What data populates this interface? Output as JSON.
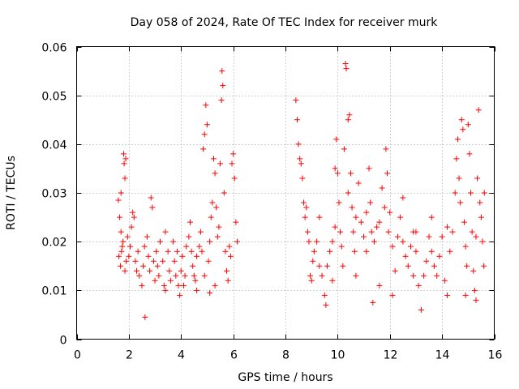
{
  "chart_data": {
    "type": "scatter",
    "title": "Day 058 of 2024, Rate Of TEC Index for receiver murk",
    "xlabel": "GPS time / hours",
    "ylabel": "ROTI / TECUs",
    "xlim": [
      0,
      16
    ],
    "ylim": [
      0,
      0.06
    ],
    "xticks": [
      0,
      2,
      4,
      6,
      8,
      10,
      12,
      14,
      16
    ],
    "yticks": [
      0,
      0.01,
      0.02,
      0.03,
      0.04,
      0.05,
      0.06
    ],
    "xtick_labels": [
      "0",
      "2",
      "4",
      "6",
      "8",
      "10",
      "12",
      "14",
      "16"
    ],
    "ytick_labels": [
      "0",
      "0.01",
      "0.02",
      "0.03",
      "0.04",
      "0.05",
      "0.06"
    ],
    "grid": true,
    "marker": "plus",
    "marker_color": "#ff0000",
    "series": [
      {
        "name": "ROTI",
        "points": [
          [
            1.6,
            0.0285
          ],
          [
            1.65,
            0.025
          ],
          [
            1.7,
            0.03
          ],
          [
            1.7,
            0.022
          ],
          [
            1.75,
            0.019
          ],
          [
            1.8,
            0.038
          ],
          [
            1.82,
            0.036
          ],
          [
            1.85,
            0.033
          ],
          [
            1.88,
            0.037
          ],
          [
            1.9,
            0.016
          ],
          [
            1.62,
            0.017
          ],
          [
            1.68,
            0.015
          ],
          [
            1.72,
            0.018
          ],
          [
            1.78,
            0.02
          ],
          [
            1.85,
            0.014
          ],
          [
            1.95,
            0.021
          ],
          [
            2.0,
            0.017
          ],
          [
            2.05,
            0.019
          ],
          [
            2.1,
            0.023
          ],
          [
            2.15,
            0.026
          ],
          [
            2.2,
            0.025
          ],
          [
            2.25,
            0.016
          ],
          [
            2.3,
            0.014
          ],
          [
            2.35,
            0.018
          ],
          [
            2.4,
            0.013
          ],
          [
            2.5,
            0.011
          ],
          [
            2.55,
            0.015
          ],
          [
            2.6,
            0.019
          ],
          [
            2.62,
            0.0045
          ],
          [
            2.7,
            0.021
          ],
          [
            2.75,
            0.017
          ],
          [
            2.8,
            0.014
          ],
          [
            2.85,
            0.029
          ],
          [
            2.9,
            0.027
          ],
          [
            2.95,
            0.016
          ],
          [
            3.0,
            0.012
          ],
          [
            3.05,
            0.018
          ],
          [
            3.1,
            0.015
          ],
          [
            3.15,
            0.013
          ],
          [
            3.2,
            0.02
          ],
          [
            3.3,
            0.016
          ],
          [
            3.35,
            0.011
          ],
          [
            3.4,
            0.022
          ],
          [
            3.5,
            0.018
          ],
          [
            3.55,
            0.014
          ],
          [
            3.6,
            0.012
          ],
          [
            3.7,
            0.02
          ],
          [
            3.75,
            0.016
          ],
          [
            3.8,
            0.013
          ],
          [
            3.85,
            0.018
          ],
          [
            3.9,
            0.011
          ],
          [
            3.95,
            0.009
          ],
          [
            4.0,
            0.014
          ],
          [
            4.05,
            0.017
          ],
          [
            4.1,
            0.011
          ],
          [
            4.15,
            0.013
          ],
          [
            4.2,
            0.019
          ],
          [
            4.3,
            0.021
          ],
          [
            4.35,
            0.024
          ],
          [
            4.4,
            0.018
          ],
          [
            4.45,
            0.015
          ],
          [
            4.5,
            0.013
          ],
          [
            4.55,
            0.012
          ],
          [
            4.6,
            0.017
          ],
          [
            4.7,
            0.019
          ],
          [
            4.75,
            0.022
          ],
          [
            4.8,
            0.018
          ],
          [
            4.85,
            0.039
          ],
          [
            4.9,
            0.042
          ],
          [
            4.95,
            0.048
          ],
          [
            5.0,
            0.044
          ],
          [
            5.05,
            0.016
          ],
          [
            5.1,
            0.02
          ],
          [
            5.15,
            0.025
          ],
          [
            5.2,
            0.028
          ],
          [
            5.25,
            0.037
          ],
          [
            5.3,
            0.034
          ],
          [
            5.35,
            0.027
          ],
          [
            5.4,
            0.021
          ],
          [
            5.45,
            0.023
          ],
          [
            5.5,
            0.036
          ],
          [
            5.55,
            0.049
          ],
          [
            5.57,
            0.055
          ],
          [
            5.6,
            0.052
          ],
          [
            5.65,
            0.03
          ],
          [
            5.7,
            0.018
          ],
          [
            5.75,
            0.014
          ],
          [
            5.8,
            0.012
          ],
          [
            5.85,
            0.019
          ],
          [
            5.9,
            0.017
          ],
          [
            5.95,
            0.036
          ],
          [
            6.0,
            0.038
          ],
          [
            6.05,
            0.033
          ],
          [
            6.1,
            0.024
          ],
          [
            6.15,
            0.02
          ],
          [
            5.3,
            0.011
          ],
          [
            5.1,
            0.0095
          ],
          [
            4.9,
            0.013
          ],
          [
            4.6,
            0.01
          ],
          [
            3.4,
            0.01
          ],
          [
            8.4,
            0.049
          ],
          [
            8.45,
            0.045
          ],
          [
            8.5,
            0.04
          ],
          [
            8.55,
            0.037
          ],
          [
            8.6,
            0.036
          ],
          [
            8.65,
            0.033
          ],
          [
            8.7,
            0.028
          ],
          [
            8.75,
            0.025
          ],
          [
            8.8,
            0.027
          ],
          [
            8.85,
            0.022
          ],
          [
            8.9,
            0.02
          ],
          [
            8.95,
            0.013
          ],
          [
            9.0,
            0.012
          ],
          [
            9.05,
            0.016
          ],
          [
            9.1,
            0.018
          ],
          [
            9.2,
            0.02
          ],
          [
            9.3,
            0.015
          ],
          [
            9.4,
            0.013
          ],
          [
            9.5,
            0.009
          ],
          [
            9.55,
            0.007
          ],
          [
            9.6,
            0.015
          ],
          [
            9.7,
            0.018
          ],
          [
            9.8,
            0.02
          ],
          [
            9.9,
            0.023
          ],
          [
            9.95,
            0.041
          ],
          [
            10.0,
            0.034
          ],
          [
            10.05,
            0.028
          ],
          [
            10.1,
            0.022
          ],
          [
            10.15,
            0.019
          ],
          [
            10.2,
            0.015
          ],
          [
            10.25,
            0.039
          ],
          [
            10.3,
            0.0565
          ],
          [
            10.33,
            0.0555
          ],
          [
            10.4,
            0.045
          ],
          [
            10.45,
            0.046
          ],
          [
            10.5,
            0.034
          ],
          [
            10.55,
            0.027
          ],
          [
            10.6,
            0.022
          ],
          [
            10.65,
            0.018
          ],
          [
            10.7,
            0.025
          ],
          [
            10.8,
            0.032
          ],
          [
            10.9,
            0.024
          ],
          [
            11.0,
            0.021
          ],
          [
            11.1,
            0.018
          ],
          [
            11.2,
            0.035
          ],
          [
            11.25,
            0.028
          ],
          [
            11.3,
            0.022
          ],
          [
            11.35,
            0.0075
          ],
          [
            11.4,
            0.02
          ],
          [
            11.5,
            0.023
          ],
          [
            11.6,
            0.024
          ],
          [
            11.7,
            0.031
          ],
          [
            11.8,
            0.027
          ],
          [
            11.85,
            0.039
          ],
          [
            11.9,
            0.034
          ],
          [
            11.95,
            0.022
          ],
          [
            12.0,
            0.026
          ],
          [
            12.1,
            0.019
          ],
          [
            12.2,
            0.014
          ],
          [
            12.3,
            0.021
          ],
          [
            12.4,
            0.025
          ],
          [
            12.5,
            0.02
          ],
          [
            12.6,
            0.017
          ],
          [
            12.7,
            0.015
          ],
          [
            12.8,
            0.019
          ],
          [
            12.9,
            0.022
          ],
          [
            13.0,
            0.018
          ],
          [
            13.1,
            0.011
          ],
          [
            13.2,
            0.006
          ],
          [
            13.3,
            0.013
          ],
          [
            13.4,
            0.016
          ],
          [
            13.5,
            0.021
          ],
          [
            13.6,
            0.018
          ],
          [
            13.7,
            0.015
          ],
          [
            13.8,
            0.013
          ],
          [
            13.9,
            0.017
          ],
          [
            14.0,
            0.021
          ],
          [
            14.1,
            0.012
          ],
          [
            14.2,
            0.009
          ],
          [
            14.3,
            0.018
          ],
          [
            14.4,
            0.022
          ],
          [
            14.5,
            0.03
          ],
          [
            14.55,
            0.037
          ],
          [
            14.6,
            0.041
          ],
          [
            14.65,
            0.033
          ],
          [
            14.7,
            0.028
          ],
          [
            14.75,
            0.045
          ],
          [
            14.8,
            0.043
          ],
          [
            14.85,
            0.024
          ],
          [
            14.9,
            0.019
          ],
          [
            14.95,
            0.015
          ],
          [
            15.0,
            0.044
          ],
          [
            15.05,
            0.038
          ],
          [
            15.1,
            0.03
          ],
          [
            15.15,
            0.022
          ],
          [
            15.2,
            0.014
          ],
          [
            15.25,
            0.01
          ],
          [
            15.3,
            0.008
          ],
          [
            15.35,
            0.033
          ],
          [
            15.4,
            0.047
          ],
          [
            15.45,
            0.028
          ],
          [
            15.5,
            0.025
          ],
          [
            15.55,
            0.02
          ],
          [
            15.6,
            0.015
          ],
          [
            15.62,
            0.03
          ],
          [
            9.3,
            0.025
          ],
          [
            9.8,
            0.012
          ],
          [
            10.7,
            0.013
          ],
          [
            11.6,
            0.011
          ],
          [
            12.5,
            0.029
          ],
          [
            13.6,
            0.025
          ],
          [
            14.2,
            0.023
          ],
          [
            12.9,
            0.013
          ],
          [
            11.1,
            0.026
          ],
          [
            10.4,
            0.03
          ],
          [
            13.0,
            0.022
          ],
          [
            14.9,
            0.009
          ],
          [
            15.3,
            0.021
          ],
          [
            9.9,
            0.035
          ],
          [
            12.1,
            0.009
          ]
        ]
      }
    ]
  }
}
